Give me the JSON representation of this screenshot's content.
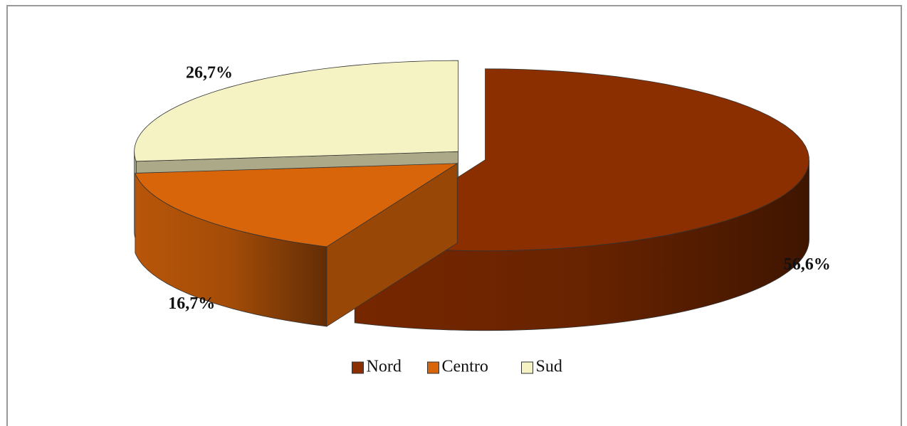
{
  "chart_data": {
    "type": "pie",
    "categories": [
      "Nord",
      "Centro",
      "Sud"
    ],
    "values": [
      56.6,
      16.7,
      26.7
    ],
    "value_labels": [
      "56,6%",
      "16,7%",
      "26,7%"
    ],
    "colors": [
      "#8b2e00",
      "#d9650a",
      "#f5f2c4"
    ],
    "legend": "bottom"
  }
}
